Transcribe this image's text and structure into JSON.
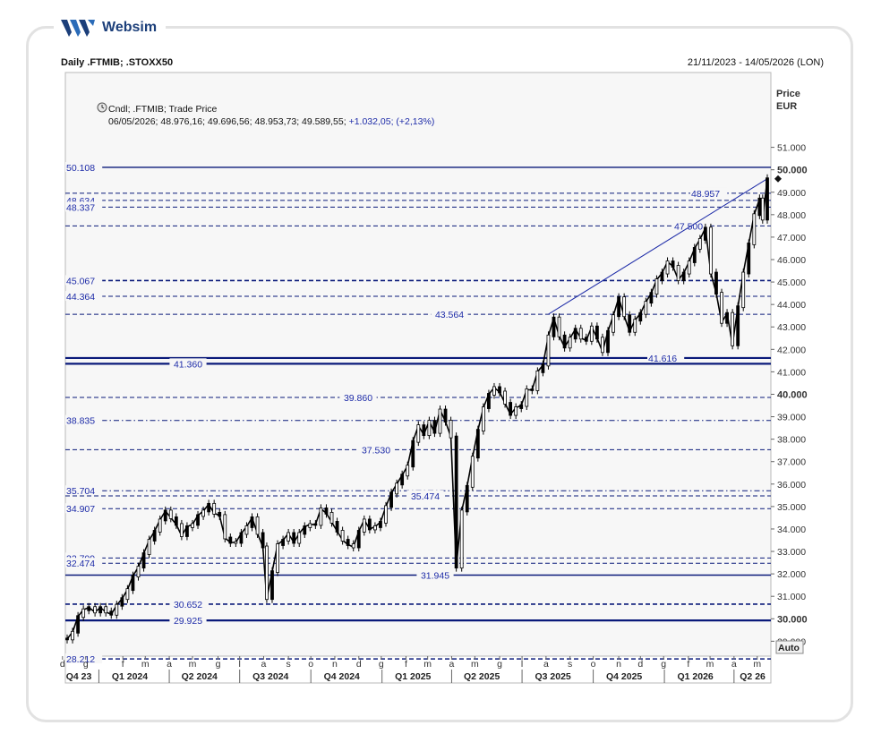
{
  "brand": {
    "name": "Websim"
  },
  "header": {
    "title": "Daily .FTMIB; .STOXX50",
    "date_range": "21/11/2023 - 14/05/2026 (LON)"
  },
  "legend": {
    "line1": "Cndl; .FTMIB; Trade Price",
    "line2_prefix": "06/05/2026; 48.976,16; 49.696,56; 48.953,73; 49.589,55;",
    "line2_change": "+1.032,05; (+2,13%)"
  },
  "axis": {
    "title_line1": "Price",
    "title_line2": "EUR",
    "auto_label": "Auto"
  },
  "colors": {
    "level_line": "#0a1a7a",
    "candle": "#000000",
    "axis_text": "#333333",
    "plot_bg": "#f7f7f7"
  },
  "chart_data": {
    "type": "line",
    "title": "Daily .FTMIB; .STOXX50",
    "ylabel": "Price EUR",
    "ylim": [
      28000,
      51500
    ],
    "y_ticks": [
      {
        "value": 29000,
        "label": "29.000"
      },
      {
        "value": 30000,
        "label": "30.000"
      },
      {
        "value": 31000,
        "label": "31.000"
      },
      {
        "value": 32000,
        "label": "32.000"
      },
      {
        "value": 33000,
        "label": "33.000"
      },
      {
        "value": 34000,
        "label": "34.000"
      },
      {
        "value": 35000,
        "label": "35.000"
      },
      {
        "value": 36000,
        "label": "36.000"
      },
      {
        "value": 37000,
        "label": "37.000"
      },
      {
        "value": 38000,
        "label": "38.000"
      },
      {
        "value": 39000,
        "label": "39.000"
      },
      {
        "value": 40000,
        "label": "40.000"
      },
      {
        "value": 41000,
        "label": "41.000"
      },
      {
        "value": 42000,
        "label": "42.000"
      },
      {
        "value": 43000,
        "label": "43.000"
      },
      {
        "value": 44000,
        "label": "44.000"
      },
      {
        "value": 45000,
        "label": "45.000"
      },
      {
        "value": 46000,
        "label": "46.000"
      },
      {
        "value": 47000,
        "label": "47.000"
      },
      {
        "value": 48000,
        "label": "48.000"
      },
      {
        "value": 49000,
        "label": "49.000"
      },
      {
        "value": 50000,
        "label": "50.000"
      },
      {
        "value": 51000,
        "label": "51.000"
      }
    ],
    "bold_ticks": [
      30000,
      40000,
      50000
    ],
    "x_range": [
      "2023-11-21",
      "2026-05-14"
    ],
    "month_ticks": [
      {
        "date": "2023-11-15",
        "label": "d"
      },
      {
        "date": "2023-12-15",
        "label": "g"
      },
      {
        "date": "2024-02-01",
        "label": "f"
      },
      {
        "date": "2024-03-01",
        "label": "m"
      },
      {
        "date": "2024-04-01",
        "label": "a"
      },
      {
        "date": "2024-05-01",
        "label": "m"
      },
      {
        "date": "2024-06-03",
        "label": "g"
      },
      {
        "date": "2024-07-01",
        "label": "l"
      },
      {
        "date": "2024-08-01",
        "label": "a"
      },
      {
        "date": "2024-09-02",
        "label": "s"
      },
      {
        "date": "2024-10-01",
        "label": "o"
      },
      {
        "date": "2024-11-01",
        "label": "n"
      },
      {
        "date": "2024-12-02",
        "label": "d"
      },
      {
        "date": "2024-12-31",
        "label": "g"
      },
      {
        "date": "2025-02-01",
        "label": "f"
      },
      {
        "date": "2025-03-01",
        "label": "m"
      },
      {
        "date": "2025-04-01",
        "label": "a"
      },
      {
        "date": "2025-05-01",
        "label": "m"
      },
      {
        "date": "2025-06-02",
        "label": "g"
      },
      {
        "date": "2025-07-01",
        "label": "l"
      },
      {
        "date": "2025-08-01",
        "label": "a"
      },
      {
        "date": "2025-09-01",
        "label": "s"
      },
      {
        "date": "2025-10-01",
        "label": "o"
      },
      {
        "date": "2025-11-03",
        "label": "n"
      },
      {
        "date": "2025-12-01",
        "label": "d"
      },
      {
        "date": "2025-12-31",
        "label": "g"
      },
      {
        "date": "2026-02-01",
        "label": "f"
      },
      {
        "date": "2026-03-01",
        "label": "m"
      },
      {
        "date": "2026-04-01",
        "label": "a"
      },
      {
        "date": "2026-05-01",
        "label": "m"
      }
    ],
    "quarter_labels": [
      {
        "date": "2023-11-28",
        "label": "Q4 23"
      },
      {
        "date": "2024-02-10",
        "label": "Q1 2024"
      },
      {
        "date": "2024-05-10",
        "label": "Q2 2024"
      },
      {
        "date": "2024-08-10",
        "label": "Q3 2024"
      },
      {
        "date": "2024-11-10",
        "label": "Q4 2024"
      },
      {
        "date": "2025-02-10",
        "label": "Q1 2025"
      },
      {
        "date": "2025-05-10",
        "label": "Q2 2025"
      },
      {
        "date": "2025-08-10",
        "label": "Q3 2025"
      },
      {
        "date": "2025-11-10",
        "label": "Q4 2025"
      },
      {
        "date": "2026-02-10",
        "label": "Q1 2026"
      },
      {
        "date": "2026-04-25",
        "label": "Q2 26"
      }
    ],
    "quarter_separators": [
      "2024-01-01",
      "2024-04-01",
      "2024-07-01",
      "2024-10-01",
      "2025-01-01",
      "2025-04-01",
      "2025-07-01",
      "2025-10-01",
      "2026-01-01",
      "2026-04-01"
    ],
    "levels": [
      {
        "value": 50108,
        "label": "50.108",
        "style": "solid",
        "label_pos": "left"
      },
      {
        "value": 48957,
        "label": "48.957",
        "style": "dashed",
        "label_pos": "right"
      },
      {
        "value": 48634,
        "label": "48.634",
        "style": "dashed",
        "label_pos": "left"
      },
      {
        "value": 48337,
        "label": "48.337",
        "style": "dashed",
        "label_pos": "left"
      },
      {
        "value": 47500,
        "label": "47.500",
        "style": "dashed",
        "label_pos": "right"
      },
      {
        "value": 45067,
        "label": "45.067",
        "style": "dashed-bold",
        "label_pos": "left"
      },
      {
        "value": 44364,
        "label": "44.364",
        "style": "dashed",
        "label_pos": "left"
      },
      {
        "value": 43564,
        "label": "43.564",
        "style": "dashed",
        "label_pos": "center"
      },
      {
        "value": 41616,
        "label": "41.616",
        "style": "solid-bold",
        "label_pos": "right"
      },
      {
        "value": 41360,
        "label": "41.360",
        "style": "solid-bold",
        "label_pos": "left-mid"
      },
      {
        "value": 39860,
        "label": "39.860",
        "style": "dashed",
        "label_pos": "center"
      },
      {
        "value": 38835,
        "label": "38.835",
        "style": "dashdot",
        "label_pos": "left"
      },
      {
        "value": 37530,
        "label": "37.530",
        "style": "dashed",
        "label_pos": "center"
      },
      {
        "value": 35704,
        "label": "35.704",
        "style": "dashdot",
        "label_pos": "left"
      },
      {
        "value": 35474,
        "label": "35.474",
        "style": "dashed",
        "label_pos": "center"
      },
      {
        "value": 34907,
        "label": "34.907",
        "style": "dashed",
        "label_pos": "left"
      },
      {
        "value": 32709,
        "label": "32.709",
        "style": "dashed",
        "label_pos": "left"
      },
      {
        "value": 32474,
        "label": "32.474",
        "style": "dashed",
        "label_pos": "left"
      },
      {
        "value": 31945,
        "label": "31.945",
        "style": "solid",
        "label_pos": "center"
      },
      {
        "value": 30652,
        "label": "30.652",
        "style": "dashed-bold",
        "label_pos": "left-mid"
      },
      {
        "value": 29925,
        "label": "29.925",
        "style": "solid-bold",
        "label_pos": "left-mid"
      },
      {
        "value": 28212,
        "label": "28.212",
        "style": "dashed-bold",
        "label_pos": "left"
      }
    ],
    "trendline": {
      "from": {
        "date": "2025-08-04",
        "value": 43564
      },
      "to": {
        "date": "2026-05-14",
        "value": 49600
      }
    },
    "last_price_marker": 49600,
    "series": [
      {
        "name": ".FTMIB",
        "points": [
          [
            "2023-11-21",
            29100
          ],
          [
            "2023-11-28",
            29400
          ],
          [
            "2023-12-05",
            30100
          ],
          [
            "2023-12-12",
            30400
          ],
          [
            "2023-12-19",
            30500
          ],
          [
            "2023-12-27",
            30300
          ],
          [
            "2024-01-03",
            30500
          ],
          [
            "2024-01-10",
            30300
          ],
          [
            "2024-01-17",
            30200
          ],
          [
            "2024-01-24",
            30600
          ],
          [
            "2024-01-31",
            30900
          ],
          [
            "2024-02-07",
            31300
          ],
          [
            "2024-02-14",
            31900
          ],
          [
            "2024-02-21",
            32300
          ],
          [
            "2024-02-28",
            32900
          ],
          [
            "2024-03-06",
            33500
          ],
          [
            "2024-03-13",
            33900
          ],
          [
            "2024-03-20",
            34400
          ],
          [
            "2024-03-27",
            34800
          ],
          [
            "2024-04-03",
            34500
          ],
          [
            "2024-04-10",
            34200
          ],
          [
            "2024-04-17",
            33700
          ],
          [
            "2024-04-24",
            34100
          ],
          [
            "2024-05-01",
            34200
          ],
          [
            "2024-05-08",
            34600
          ],
          [
            "2024-05-15",
            34800
          ],
          [
            "2024-05-22",
            35100
          ],
          [
            "2024-05-29",
            34700
          ],
          [
            "2024-06-05",
            34600
          ],
          [
            "2024-06-12",
            33600
          ],
          [
            "2024-06-19",
            33400
          ],
          [
            "2024-06-26",
            33400
          ],
          [
            "2024-07-03",
            33800
          ],
          [
            "2024-07-10",
            34100
          ],
          [
            "2024-07-17",
            34500
          ],
          [
            "2024-07-24",
            33800
          ],
          [
            "2024-07-31",
            33200
          ],
          [
            "2024-08-05",
            30900
          ],
          [
            "2024-08-12",
            32100
          ],
          [
            "2024-08-19",
            33300
          ],
          [
            "2024-08-26",
            33500
          ],
          [
            "2024-09-02",
            33800
          ],
          [
            "2024-09-09",
            33400
          ],
          [
            "2024-09-16",
            33800
          ],
          [
            "2024-09-23",
            34100
          ],
          [
            "2024-09-30",
            34200
          ],
          [
            "2024-10-07",
            34200
          ],
          [
            "2024-10-14",
            34900
          ],
          [
            "2024-10-21",
            34700
          ],
          [
            "2024-10-28",
            34300
          ],
          [
            "2024-11-04",
            33900
          ],
          [
            "2024-11-11",
            33500
          ],
          [
            "2024-11-18",
            33300
          ],
          [
            "2024-11-25",
            33200
          ],
          [
            "2024-12-02",
            33900
          ],
          [
            "2024-12-09",
            34400
          ],
          [
            "2024-12-16",
            34000
          ],
          [
            "2024-12-23",
            34100
          ],
          [
            "2024-12-30",
            34300
          ],
          [
            "2025-01-06",
            35000
          ],
          [
            "2025-01-13",
            35600
          ],
          [
            "2025-01-20",
            36000
          ],
          [
            "2025-01-27",
            36400
          ],
          [
            "2025-02-03",
            36800
          ],
          [
            "2025-02-10",
            37900
          ],
          [
            "2025-02-17",
            38600
          ],
          [
            "2025-02-24",
            38200
          ],
          [
            "2025-03-03",
            38800
          ],
          [
            "2025-03-10",
            38300
          ],
          [
            "2025-03-17",
            39300
          ],
          [
            "2025-03-24",
            38800
          ],
          [
            "2025-03-31",
            38100
          ],
          [
            "2025-04-07",
            32300
          ],
          [
            "2025-04-14",
            34800
          ],
          [
            "2025-04-21",
            35900
          ],
          [
            "2025-04-28",
            37200
          ],
          [
            "2025-05-05",
            38400
          ],
          [
            "2025-05-12",
            39400
          ],
          [
            "2025-05-19",
            40000
          ],
          [
            "2025-05-26",
            40300
          ],
          [
            "2025-06-02",
            40100
          ],
          [
            "2025-06-09",
            39600
          ],
          [
            "2025-06-16",
            39100
          ],
          [
            "2025-06-23",
            39400
          ],
          [
            "2025-06-30",
            39500
          ],
          [
            "2025-07-07",
            40200
          ],
          [
            "2025-07-14",
            40200
          ],
          [
            "2025-07-21",
            41000
          ],
          [
            "2025-07-28",
            41300
          ],
          [
            "2025-08-04",
            42600
          ],
          [
            "2025-08-11",
            43400
          ],
          [
            "2025-08-18",
            42600
          ],
          [
            "2025-08-25",
            42100
          ],
          [
            "2025-09-01",
            42500
          ],
          [
            "2025-09-08",
            42900
          ],
          [
            "2025-09-15",
            42500
          ],
          [
            "2025-09-22",
            42400
          ],
          [
            "2025-09-29",
            43000
          ],
          [
            "2025-10-06",
            42500
          ],
          [
            "2025-10-13",
            41900
          ],
          [
            "2025-10-20",
            42800
          ],
          [
            "2025-10-27",
            43500
          ],
          [
            "2025-11-03",
            44300
          ],
          [
            "2025-11-10",
            43500
          ],
          [
            "2025-11-17",
            42800
          ],
          [
            "2025-11-24",
            43300
          ],
          [
            "2025-12-01",
            43600
          ],
          [
            "2025-12-08",
            44100
          ],
          [
            "2025-12-15",
            44500
          ],
          [
            "2025-12-22",
            45100
          ],
          [
            "2025-12-29",
            45400
          ],
          [
            "2026-01-05",
            45900
          ],
          [
            "2026-01-12",
            45700
          ],
          [
            "2026-01-19",
            45100
          ],
          [
            "2026-01-26",
            45400
          ],
          [
            "2026-02-02",
            45900
          ],
          [
            "2026-02-09",
            46500
          ],
          [
            "2026-02-16",
            46900
          ],
          [
            "2026-02-23",
            47400
          ],
          [
            "2026-03-02",
            45400
          ],
          [
            "2026-03-09",
            44500
          ],
          [
            "2026-03-16",
            43200
          ],
          [
            "2026-03-23",
            43600
          ],
          [
            "2026-03-30",
            42200
          ],
          [
            "2026-04-06",
            43900
          ],
          [
            "2026-04-13",
            45400
          ],
          [
            "2026-04-20",
            46700
          ],
          [
            "2026-04-27",
            48000
          ],
          [
            "2026-05-04",
            48700
          ],
          [
            "2026-05-08",
            47800
          ],
          [
            "2026-05-14",
            49600
          ]
        ]
      }
    ]
  }
}
